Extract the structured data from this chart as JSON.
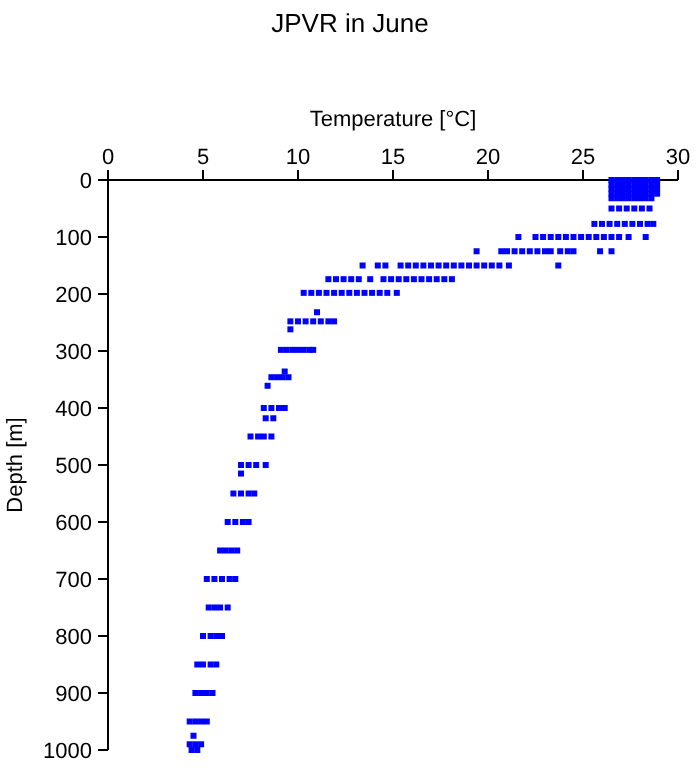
{
  "chart_data": {
    "type": "scatter",
    "title": "JPVR in June",
    "xlabel": "Temperature [°C]",
    "ylabel": "Depth [m]",
    "xlim": [
      0,
      30
    ],
    "xticks": [
      0,
      5,
      10,
      15,
      20,
      25,
      30
    ],
    "ylim": [
      1000,
      0
    ],
    "yticks": [
      0,
      100,
      200,
      300,
      400,
      500,
      600,
      700,
      800,
      900,
      1000
    ],
    "marker": "square",
    "grid": false,
    "series": [
      {
        "color": "#0000ff",
        "x": [
          26.5,
          26.8,
          27.1,
          27.4,
          27.7,
          28.0,
          28.3,
          28.6,
          28.9,
          26.5,
          26.8,
          27.1,
          27.4,
          27.7,
          28.0,
          28.3,
          28.6,
          28.9,
          26.5,
          26.8,
          27.1,
          27.4,
          27.7,
          28.0,
          28.3,
          28.6,
          28.9,
          26.5,
          26.8,
          27.1,
          27.4,
          27.7,
          28.0,
          28.3,
          28.6,
          28.9,
          26.5,
          26.8,
          27.1,
          27.4,
          27.7,
          28.0,
          28.3,
          28.6,
          26.5,
          26.9,
          27.3,
          27.7,
          28.1,
          28.5,
          25.6,
          26.0,
          26.4,
          26.8,
          27.2,
          27.6,
          28.0,
          28.4,
          28.7,
          21.6,
          22.5,
          22.9,
          23.3,
          23.7,
          24.1,
          24.5,
          24.9,
          25.3,
          25.7,
          26.1,
          26.5,
          26.9,
          27.4,
          28.3,
          19.4,
          20.7,
          21.0,
          21.4,
          21.8,
          22.2,
          22.6,
          23.0,
          23.3,
          23.8,
          24.2,
          24.5,
          25.9,
          26.5,
          13.4,
          14.2,
          14.6,
          15.4,
          15.8,
          16.2,
          16.6,
          17.0,
          17.4,
          17.8,
          18.2,
          18.6,
          19.0,
          19.4,
          19.8,
          20.2,
          20.6,
          21.1,
          23.7,
          11.6,
          12.0,
          12.4,
          12.8,
          13.2,
          13.8,
          14.5,
          14.9,
          15.3,
          15.7,
          16.1,
          16.5,
          16.9,
          17.3,
          17.7,
          18.1,
          10.3,
          10.7,
          11.1,
          11.5,
          11.9,
          12.3,
          12.7,
          13.1,
          13.5,
          13.9,
          14.3,
          14.7,
          15.2,
          11.0,
          9.6,
          10.0,
          10.4,
          10.8,
          11.2,
          11.6,
          11.9,
          9.6,
          9.1,
          9.4,
          9.7,
          10.0,
          10.3,
          10.6,
          10.8,
          9.3,
          8.6,
          8.9,
          9.2,
          9.5,
          8.4,
          8.2,
          8.6,
          9.0,
          9.3,
          8.3,
          8.7,
          7.5,
          7.9,
          8.2,
          8.6,
          7.0,
          7.4,
          7.8,
          8.3,
          7.0,
          6.6,
          7.0,
          7.4,
          7.7,
          6.3,
          6.7,
          7.1,
          7.4,
          5.9,
          6.2,
          6.5,
          6.8,
          5.2,
          5.6,
          6.0,
          6.4,
          6.7,
          5.3,
          5.6,
          5.9,
          6.3,
          5.0,
          5.4,
          5.7,
          6.0,
          4.7,
          5.0,
          5.4,
          5.7,
          4.6,
          4.9,
          5.2,
          5.5,
          4.3,
          4.6,
          4.9,
          5.2,
          4.5,
          4.3,
          4.6,
          4.9,
          4.4,
          4.7
        ],
        "values": [
          0,
          0,
          0,
          0,
          0,
          0,
          0,
          0,
          0,
          8,
          8,
          8,
          8,
          8,
          8,
          8,
          8,
          8,
          16,
          16,
          16,
          16,
          16,
          16,
          16,
          16,
          16,
          24,
          24,
          24,
          24,
          24,
          24,
          24,
          24,
          24,
          32,
          32,
          32,
          32,
          32,
          32,
          32,
          32,
          50,
          50,
          50,
          50,
          50,
          50,
          77,
          77,
          77,
          77,
          77,
          77,
          77,
          77,
          77,
          100,
          100,
          100,
          100,
          100,
          100,
          100,
          100,
          100,
          100,
          100,
          100,
          100,
          100,
          100,
          125,
          125,
          125,
          125,
          125,
          125,
          125,
          125,
          125,
          125,
          125,
          125,
          125,
          125,
          150,
          150,
          150,
          150,
          150,
          150,
          150,
          150,
          150,
          150,
          150,
          150,
          150,
          150,
          150,
          150,
          150,
          150,
          150,
          174,
          174,
          174,
          174,
          174,
          174,
          174,
          174,
          174,
          174,
          174,
          174,
          174,
          174,
          174,
          174,
          198,
          198,
          198,
          198,
          198,
          198,
          198,
          198,
          198,
          198,
          198,
          198,
          198,
          232,
          248,
          248,
          248,
          248,
          248,
          248,
          248,
          262,
          298,
          298,
          298,
          298,
          298,
          298,
          298,
          336,
          346,
          346,
          346,
          346,
          361,
          400,
          400,
          400,
          400,
          418,
          418,
          450,
          450,
          450,
          450,
          500,
          500,
          500,
          500,
          515,
          550,
          550,
          550,
          550,
          600,
          600,
          600,
          600,
          650,
          650,
          650,
          650,
          700,
          700,
          700,
          700,
          700,
          750,
          750,
          750,
          750,
          800,
          800,
          800,
          800,
          850,
          850,
          850,
          850,
          900,
          900,
          900,
          900,
          950,
          950,
          950,
          950,
          975,
          990,
          990,
          990,
          1000,
          1000
        ]
      }
    ]
  }
}
